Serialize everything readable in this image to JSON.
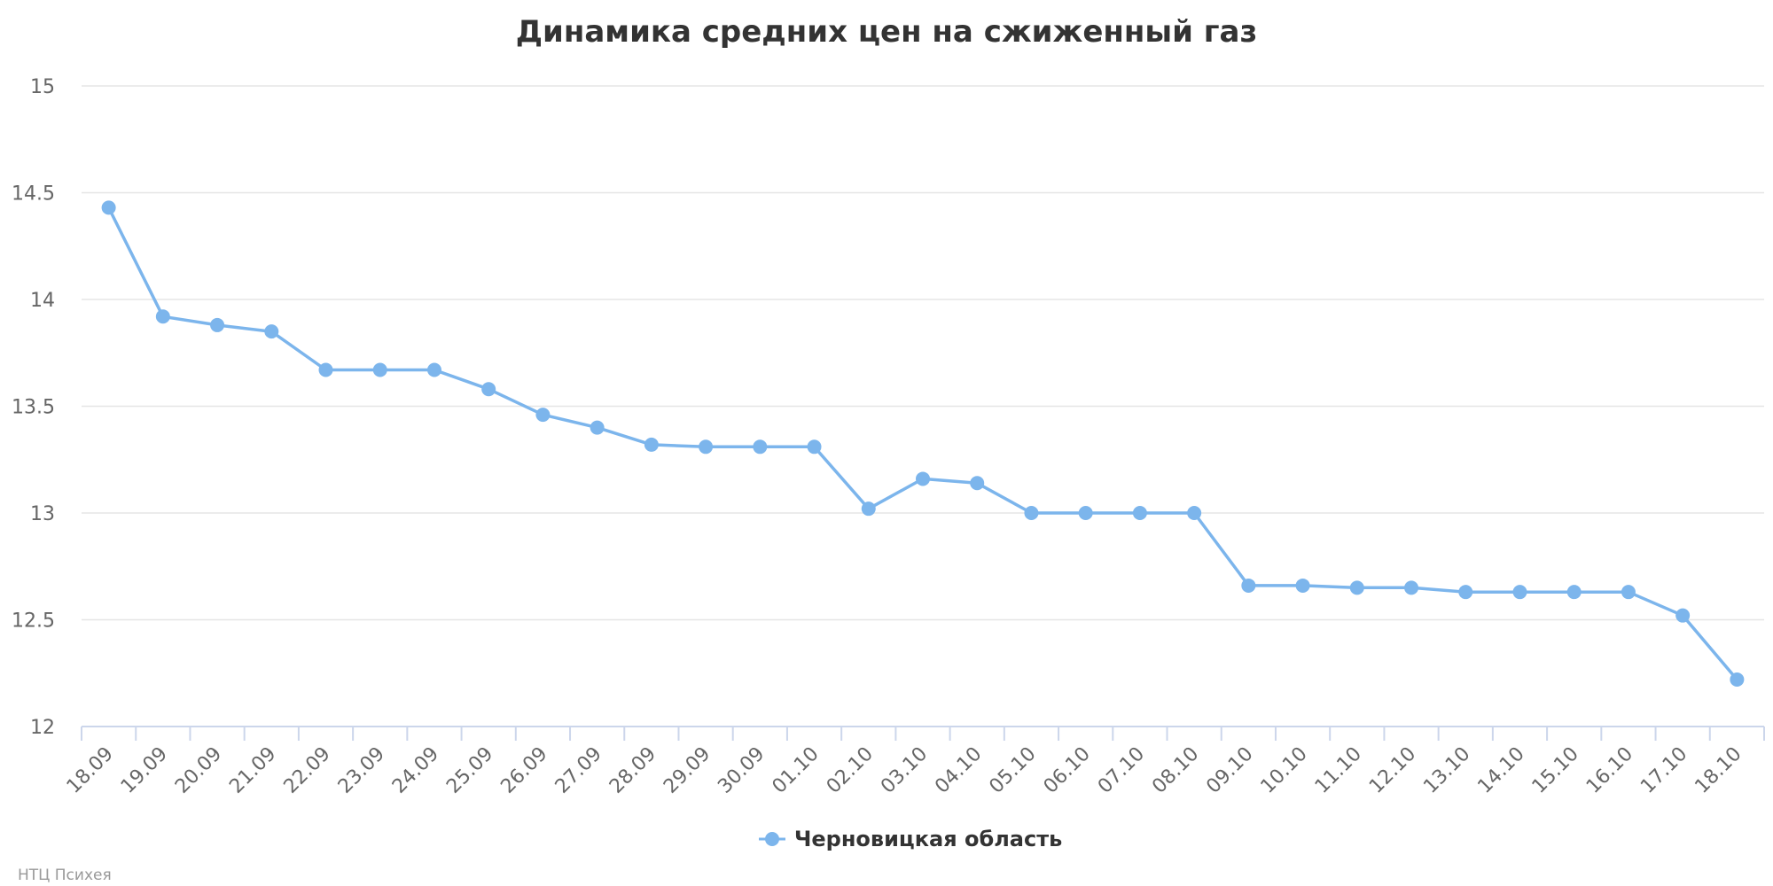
{
  "chart_data": {
    "type": "line",
    "title": "Динамика средних цен на сжиженный газ",
    "categories": [
      "18.09",
      "19.09",
      "20.09",
      "21.09",
      "22.09",
      "23.09",
      "24.09",
      "25.09",
      "26.09",
      "27.09",
      "28.09",
      "29.09",
      "30.09",
      "01.10",
      "02.10",
      "03.10",
      "04.10",
      "05.10",
      "06.10",
      "07.10",
      "08.10",
      "09.10",
      "10.10",
      "11.10",
      "12.10",
      "13.10",
      "14.10",
      "15.10",
      "16.10",
      "17.10",
      "18.10"
    ],
    "series": [
      {
        "name": "Черновицкая область",
        "color": "#7cb5ec",
        "values": [
          14.43,
          13.92,
          13.88,
          13.85,
          13.67,
          13.67,
          13.67,
          13.58,
          13.46,
          13.4,
          13.32,
          13.31,
          13.31,
          13.31,
          13.02,
          13.16,
          13.14,
          13.0,
          13.0,
          13.0,
          13.0,
          12.66,
          12.66,
          12.65,
          12.65,
          12.63,
          12.63,
          12.63,
          12.63,
          12.52,
          12.22
        ]
      }
    ],
    "ylim": [
      12,
      15
    ],
    "yticks": [
      "12",
      "12.5",
      "13",
      "13.5",
      "14",
      "14.5",
      "15"
    ],
    "grid": true,
    "legend_position": "bottom-center"
  },
  "credits": "НТЦ Психея"
}
